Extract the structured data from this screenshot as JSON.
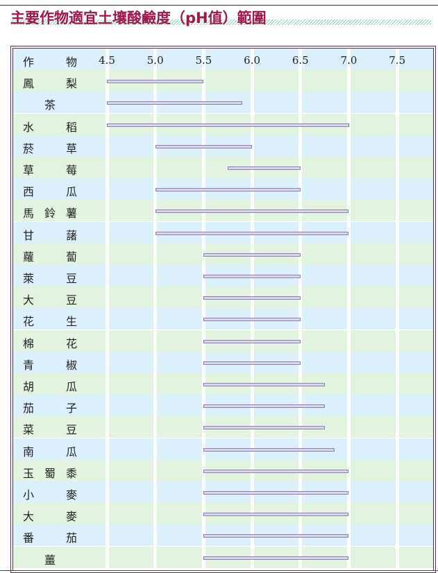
{
  "chart_data": {
    "type": "bar",
    "orientation": "horizontal-range",
    "title": "主要作物適宜土壤酸鹼度（pH值）範圍",
    "header_label": [
      "作",
      "物"
    ],
    "xticks": [
      "4.5",
      "5.0",
      "5.5",
      "6.0",
      "6.5",
      "7.0",
      "7.5"
    ],
    "xlim": [
      4.5,
      7.8
    ],
    "grid": true,
    "categories": [
      "鳳梨",
      "茶",
      "水稻",
      "菸草",
      "草莓",
      "西瓜",
      "馬鈴薯",
      "甘藷",
      "蘿蔔",
      "萊豆",
      "大豆",
      "花生",
      "棉花",
      "青椒",
      "胡瓜",
      "茄子",
      "菜豆",
      "南瓜",
      "玉蜀黍",
      "小麥",
      "大麥",
      "番茄",
      "薑"
    ],
    "ranges": [
      [
        4.5,
        5.5
      ],
      [
        4.5,
        5.9
      ],
      [
        4.5,
        7.0
      ],
      [
        5.0,
        6.0
      ],
      [
        5.75,
        6.5
      ],
      [
        5.0,
        6.5
      ],
      [
        5.0,
        7.0
      ],
      [
        5.0,
        7.0
      ],
      [
        5.5,
        6.5
      ],
      [
        5.5,
        6.5
      ],
      [
        5.5,
        6.5
      ],
      [
        5.5,
        6.5
      ],
      [
        5.5,
        6.5
      ],
      [
        5.5,
        6.5
      ],
      [
        5.5,
        6.75
      ],
      [
        5.5,
        6.75
      ],
      [
        5.5,
        6.75
      ],
      [
        5.5,
        6.85
      ],
      [
        5.5,
        7.0
      ],
      [
        5.5,
        7.0
      ],
      [
        5.5,
        7.0
      ],
      [
        5.5,
        7.0
      ],
      [
        5.5,
        7.0
      ]
    ],
    "colors": {
      "title": "#a0174a",
      "bar_fill": "#dcd3ee",
      "bar_border": "#8a82a6",
      "row_blue": "#dcf0fb",
      "row_green": "#e2f3e0",
      "frame": "#5a2a5a"
    }
  }
}
